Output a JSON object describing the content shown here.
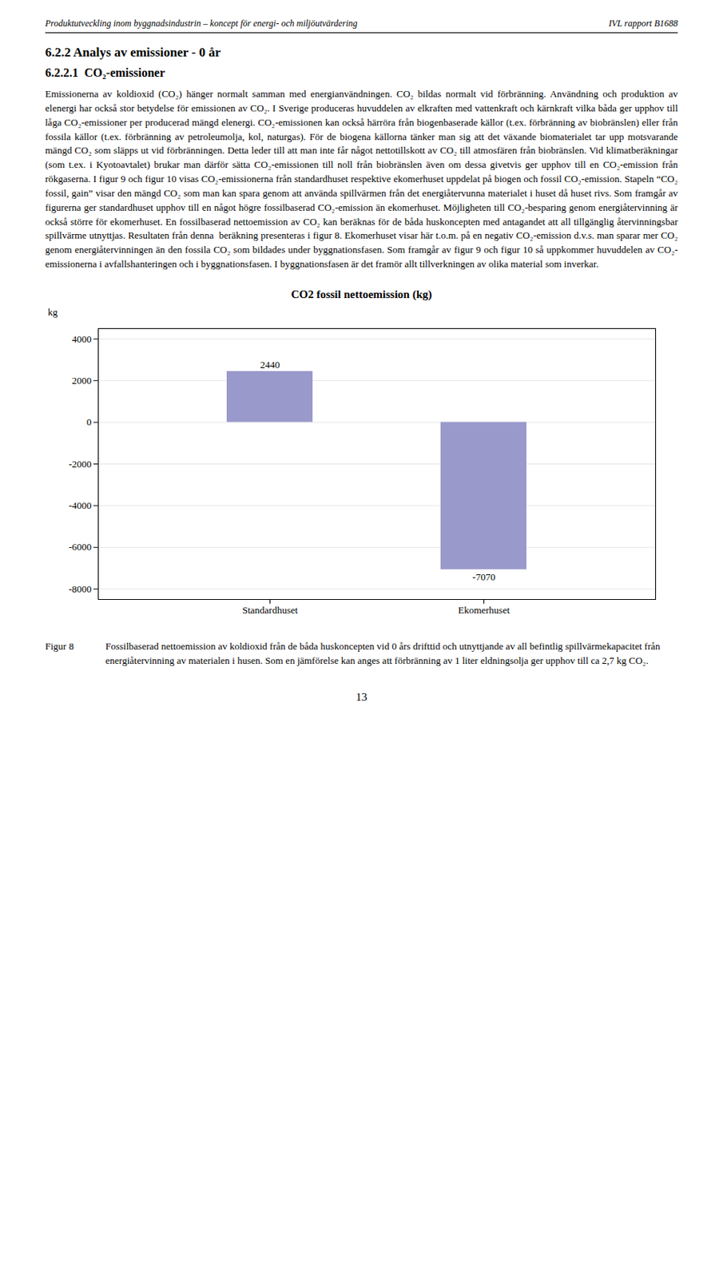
{
  "header_left": "Produktutveckling inom byggnadsindustrin – koncept för energi- och miljöutvärdering",
  "header_right": "IVL rapport B1688",
  "section_title": "6.2.2 Analys av emissioner - 0 år",
  "subsection_title": "6.2.2.1  CO₂-emissioner",
  "body": "Emissionerna av koldioxid (CO₂) hänger normalt samman med energianvändningen. CO₂ bildas normalt vid förbränning. Användning och produktion av elenergi har också stor betydelse för emissionen av CO₂. I Sverige produceras huvuddelen av elkraften med vattenkraft och kärnkraft vilka båda ger upphov till låga CO₂-emissioner per producerad mängd elenergi. CO₂-emissionen kan också härröra från biogenbaserade källor (t.ex. förbränning av biobränslen) eller från fossila källor (t.ex. förbränning av petroleumolja, kol, naturgas). För de biogena källorna tänker man sig att det växande biomaterialet tar upp motsvarande mängd CO₂ som släpps ut vid förbränningen. Detta leder till att man inte får något nettotillskott av CO₂ till atmosfären från biobränslen. Vid klimatberäkningar (som t.ex. i Kyotoavtalet) brukar man därför sätta CO₂-emissionen till noll från biobränslen även om dessa givetvis ger upphov till en CO₂-emission från rökgaserna. I figur 9 och figur 10 visas CO₂-emissionerna från standardhuset respektive ekomerhuset uppdelat på biogen och fossil CO₂-emission. Stapeln “CO₂ fossil, gain” visar den mängd CO₂ som man kan spara genom att använda spillvärmen från det energiåtervunna materialet i huset då huset rivs. Som framgår av figurerna ger standardhuset upphov till en något högre fossilbaserad CO₂-emission än ekomerhuset. Möjligheten till CO₂-besparing genom energiåtervinning är också större för ekomerhuset. En fossilbaserad nettoemission av CO₂ kan beräknas för de båda huskoncepten med antagandet att all tillgänglig återvinningsbar spillvärme utnyttjas. Resultaten från denna  beräkning presenteras i figur 8. Ekomerhuset visar här t.o.m. på en negativ CO₂-emission d.v.s. man sparar mer CO₂ genom energiåtervinningen än den fossila CO₂ som bildades under byggnationsfasen. Som framgår av figur 9 och figur 10 så uppkommer huvuddelen av CO₂-emissionerna i avfallshanteringen och i byggnationsfasen. I byggnationsfasen är det framör allt tillverkningen av olika material som inverkar.",
  "caption_label": "Figur 8",
  "caption_text": "Fossilbaserad nettoemission av koldioxid från de båda huskoncepten vid 0 års drifttid och utnyttjande av all befintlig spillvärmekapacitet från energiåtervinning av materialen i husen. Som en jämförelse kan anges att förbränning av 1 liter eldningsolja ger upphov till ca 2,7 kg CO₂.",
  "page_number": "13",
  "chart_data": {
    "type": "bar",
    "title": "CO2 fossil nettoemission (kg)",
    "categories": [
      "Standardhuset",
      "Ekomerhuset"
    ],
    "values": [
      2440,
      -7070
    ],
    "color": "#9999cc",
    "ylabel": "kg",
    "ylim": [
      -8500,
      4500
    ],
    "yticks": [
      -8000,
      -6000,
      -4000,
      -2000,
      0,
      2000,
      4000
    ],
    "grid": true,
    "data_labels": true
  }
}
